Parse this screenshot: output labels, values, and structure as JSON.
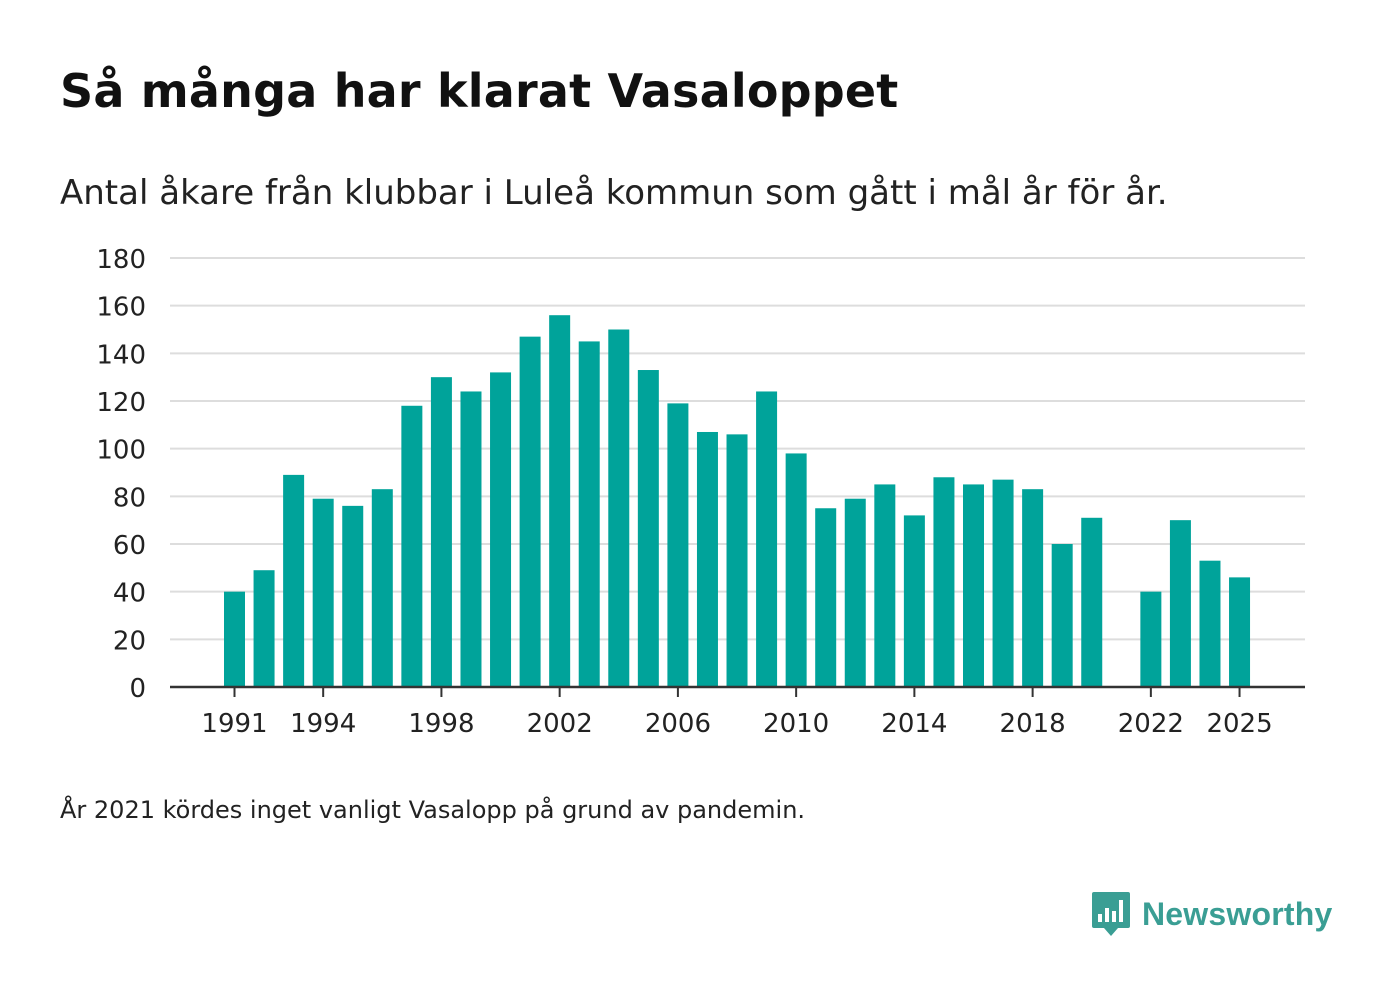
{
  "title": "Så många har klarat Vasaloppet",
  "subtitle": "Antal åkare från klubbar i Luleå kommun som gått i mål år för år.",
  "footnote": "År 2021 kördes inget vanligt Vasalopp på grund av pandemin.",
  "brand": {
    "name": "Newsworthy",
    "icon": "newsworthy-logo-icon",
    "color": "#3a9e94"
  },
  "colors": {
    "bar": "#00a39a",
    "grid": "#dddddd",
    "axis": "#333333",
    "text": "#222222"
  },
  "chart_data": {
    "type": "bar",
    "title": "Så många har klarat Vasaloppet",
    "xlabel": "",
    "ylabel": "",
    "ylim": [
      0,
      180
    ],
    "yticks": [
      0,
      20,
      40,
      60,
      80,
      100,
      120,
      140,
      160,
      180
    ],
    "xticks": [
      1991,
      1994,
      1998,
      2002,
      2006,
      2010,
      2014,
      2018,
      2022,
      2025
    ],
    "grid": true,
    "categories": [
      1991,
      1992,
      1993,
      1994,
      1995,
      1996,
      1997,
      1998,
      1999,
      2000,
      2001,
      2002,
      2003,
      2004,
      2005,
      2006,
      2007,
      2008,
      2009,
      2010,
      2011,
      2012,
      2013,
      2014,
      2015,
      2016,
      2017,
      2018,
      2019,
      2020,
      2021,
      2022,
      2023,
      2024,
      2025
    ],
    "values": [
      40,
      49,
      89,
      79,
      76,
      83,
      118,
      130,
      124,
      132,
      147,
      156,
      145,
      150,
      133,
      119,
      107,
      106,
      124,
      98,
      75,
      79,
      85,
      72,
      88,
      85,
      87,
      83,
      60,
      71,
      null,
      40,
      70,
      53,
      46
    ]
  }
}
